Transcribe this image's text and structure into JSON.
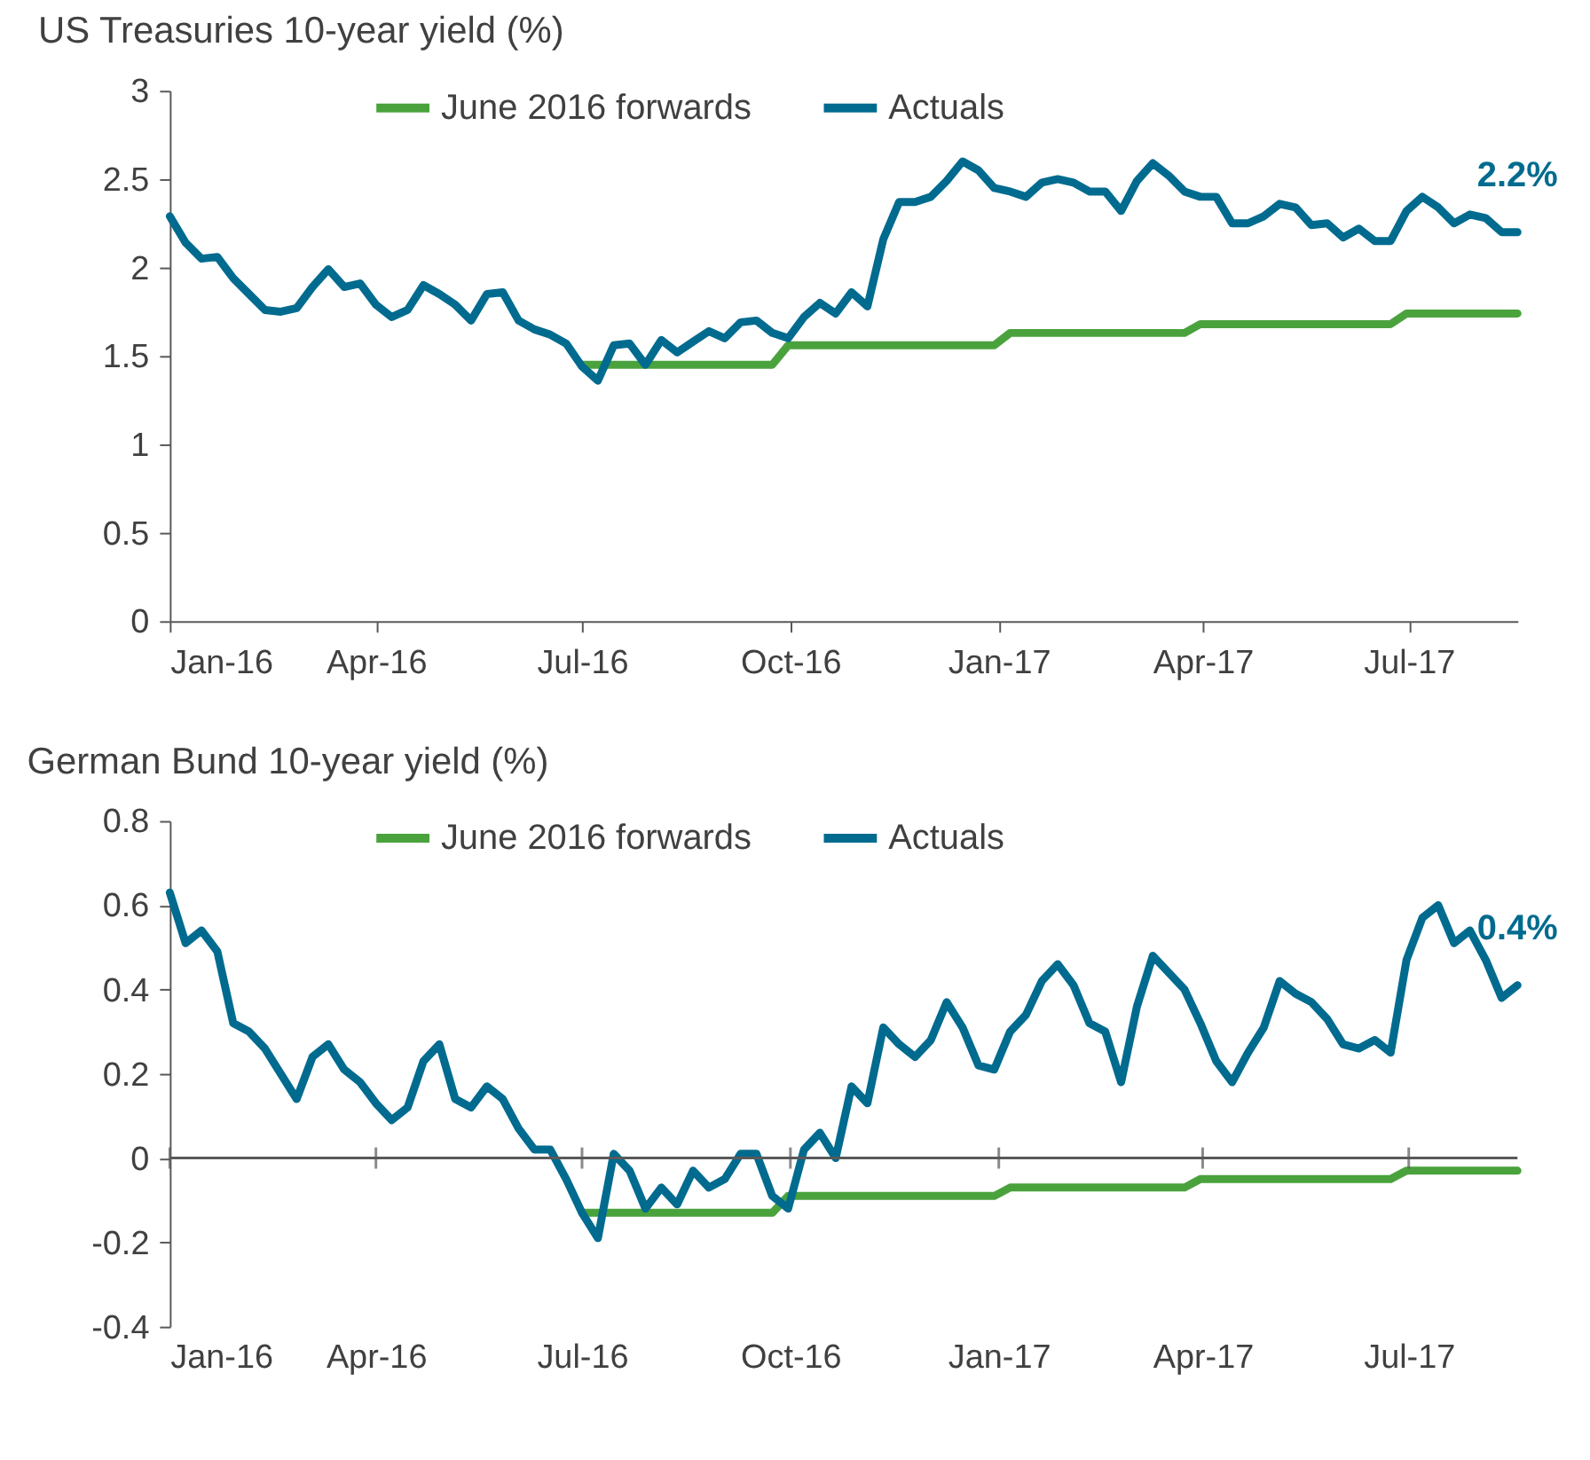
{
  "chart_data": [
    {
      "type": "line",
      "title": "US Treasuries 10-year yield (%)",
      "x": [
        "2016-01-01",
        "2016-01-08",
        "2016-01-15",
        "2016-01-22",
        "2016-01-29",
        "2016-02-05",
        "2016-02-12",
        "2016-02-19",
        "2016-02-26",
        "2016-03-04",
        "2016-03-11",
        "2016-03-18",
        "2016-03-25",
        "2016-04-01",
        "2016-04-08",
        "2016-04-15",
        "2016-04-22",
        "2016-04-29",
        "2016-05-06",
        "2016-05-13",
        "2016-05-20",
        "2016-05-27",
        "2016-06-03",
        "2016-06-10",
        "2016-06-17",
        "2016-06-24",
        "2016-07-01",
        "2016-07-08",
        "2016-07-15",
        "2016-07-22",
        "2016-07-29",
        "2016-08-05",
        "2016-08-12",
        "2016-08-19",
        "2016-08-26",
        "2016-09-02",
        "2016-09-09",
        "2016-09-16",
        "2016-09-23",
        "2016-09-30",
        "2016-10-07",
        "2016-10-14",
        "2016-10-21",
        "2016-10-28",
        "2016-11-04",
        "2016-11-11",
        "2016-11-18",
        "2016-11-25",
        "2016-12-02",
        "2016-12-09",
        "2016-12-16",
        "2016-12-23",
        "2016-12-30",
        "2017-01-06",
        "2017-01-13",
        "2017-01-20",
        "2017-01-27",
        "2017-02-03",
        "2017-02-10",
        "2017-02-17",
        "2017-02-24",
        "2017-03-03",
        "2017-03-10",
        "2017-03-17",
        "2017-03-24",
        "2017-03-31",
        "2017-04-07",
        "2017-04-14",
        "2017-04-21",
        "2017-04-28",
        "2017-05-05",
        "2017-05-12",
        "2017-05-19",
        "2017-05-26",
        "2017-06-02",
        "2017-06-09",
        "2017-06-16",
        "2017-06-23",
        "2017-06-30",
        "2017-07-07",
        "2017-07-14",
        "2017-07-21",
        "2017-07-28",
        "2017-08-04",
        "2017-08-11",
        "2017-08-18"
      ],
      "series": [
        {
          "name": "June 2016 forwards",
          "color": "#4aa23d",
          "x": [
            "2016-07-01",
            "2016-09-23",
            "2016-09-30",
            "2016-12-30",
            "2017-01-06",
            "2017-03-24",
            "2017-03-31",
            "2017-06-23",
            "2017-06-30",
            "2017-08-18"
          ],
          "values": [
            1.45,
            1.45,
            1.56,
            1.56,
            1.63,
            1.63,
            1.68,
            1.68,
            1.74,
            1.74
          ]
        },
        {
          "name": "Actuals",
          "color": "#006b8f",
          "values": [
            2.29,
            2.14,
            2.05,
            2.06,
            1.94,
            1.85,
            1.76,
            1.75,
            1.77,
            1.89,
            1.99,
            1.89,
            1.91,
            1.79,
            1.72,
            1.76,
            1.9,
            1.85,
            1.79,
            1.7,
            1.85,
            1.86,
            1.7,
            1.65,
            1.62,
            1.57,
            1.44,
            1.36,
            1.56,
            1.57,
            1.45,
            1.59,
            1.52,
            1.58,
            1.64,
            1.6,
            1.69,
            1.7,
            1.63,
            1.6,
            1.72,
            1.8,
            1.74,
            1.86,
            1.78,
            2.16,
            2.37,
            2.37,
            2.4,
            2.49,
            2.6,
            2.55,
            2.45,
            2.43,
            2.4,
            2.48,
            2.5,
            2.48,
            2.43,
            2.43,
            2.32,
            2.49,
            2.59,
            2.52,
            2.43,
            2.4,
            2.4,
            2.25,
            2.25,
            2.29,
            2.36,
            2.34,
            2.24,
            2.25,
            2.17,
            2.22,
            2.15,
            2.15,
            2.32,
            2.4,
            2.34,
            2.25,
            2.3,
            2.28,
            2.2,
            2.2
          ]
        }
      ],
      "xlim": [
        "2016-01-01",
        "2017-08-18"
      ],
      "xticks": [
        {
          "value": "2016-01-01",
          "label": "Jan-16"
        },
        {
          "value": "2016-04-01",
          "label": "Apr-16"
        },
        {
          "value": "2016-07-01",
          "label": "Jul-16"
        },
        {
          "value": "2016-10-01",
          "label": "Oct-16"
        },
        {
          "value": "2017-01-01",
          "label": "Jan-17"
        },
        {
          "value": "2017-04-01",
          "label": "Apr-17"
        },
        {
          "value": "2017-07-01",
          "label": "Jul-17"
        }
      ],
      "ylim": [
        0,
        3
      ],
      "yticks": [
        0,
        0.5,
        1,
        1.5,
        2,
        2.5,
        3
      ],
      "annotations": [
        {
          "text": "2.2%",
          "x": "2017-08-18",
          "y": 2.2
        }
      ],
      "legend": "top",
      "grid": false,
      "line_style": "solid",
      "marker": "none"
    },
    {
      "type": "line",
      "title": "German Bund 10-year yield (%)",
      "x": [
        "2016-01-01",
        "2016-01-08",
        "2016-01-15",
        "2016-01-22",
        "2016-01-29",
        "2016-02-05",
        "2016-02-12",
        "2016-02-19",
        "2016-02-26",
        "2016-03-04",
        "2016-03-11",
        "2016-03-18",
        "2016-03-25",
        "2016-04-01",
        "2016-04-08",
        "2016-04-15",
        "2016-04-22",
        "2016-04-29",
        "2016-05-06",
        "2016-05-13",
        "2016-05-20",
        "2016-05-27",
        "2016-06-03",
        "2016-06-10",
        "2016-06-17",
        "2016-06-24",
        "2016-07-01",
        "2016-07-08",
        "2016-07-15",
        "2016-07-22",
        "2016-07-29",
        "2016-08-05",
        "2016-08-12",
        "2016-08-19",
        "2016-08-26",
        "2016-09-02",
        "2016-09-09",
        "2016-09-16",
        "2016-09-23",
        "2016-09-30",
        "2016-10-07",
        "2016-10-14",
        "2016-10-21",
        "2016-10-28",
        "2016-11-04",
        "2016-11-11",
        "2016-11-18",
        "2016-11-25",
        "2016-12-02",
        "2016-12-09",
        "2016-12-16",
        "2016-12-23",
        "2016-12-30",
        "2017-01-06",
        "2017-01-13",
        "2017-01-20",
        "2017-01-27",
        "2017-02-03",
        "2017-02-10",
        "2017-02-17",
        "2017-02-24",
        "2017-03-03",
        "2017-03-10",
        "2017-03-17",
        "2017-03-24",
        "2017-03-31",
        "2017-04-07",
        "2017-04-14",
        "2017-04-21",
        "2017-04-28",
        "2017-05-05",
        "2017-05-12",
        "2017-05-19",
        "2017-05-26",
        "2017-06-02",
        "2017-06-09",
        "2017-06-16",
        "2017-06-23",
        "2017-06-30",
        "2017-07-07",
        "2017-07-14",
        "2017-07-21",
        "2017-07-28",
        "2017-08-04",
        "2017-08-11",
        "2017-08-18"
      ],
      "series": [
        {
          "name": "June 2016 forwards",
          "color": "#4aa23d",
          "x": [
            "2016-07-01",
            "2016-09-23",
            "2016-09-30",
            "2016-12-30",
            "2017-01-06",
            "2017-03-24",
            "2017-03-31",
            "2017-06-23",
            "2017-06-30",
            "2017-08-18"
          ],
          "values": [
            -0.13,
            -0.13,
            -0.09,
            -0.09,
            -0.07,
            -0.07,
            -0.05,
            -0.05,
            -0.03,
            -0.03
          ]
        },
        {
          "name": "Actuals",
          "color": "#006b8f",
          "values": [
            0.63,
            0.51,
            0.54,
            0.49,
            0.32,
            0.3,
            0.26,
            0.2,
            0.14,
            0.24,
            0.27,
            0.21,
            0.18,
            0.13,
            0.09,
            0.12,
            0.23,
            0.27,
            0.14,
            0.12,
            0.17,
            0.14,
            0.07,
            0.02,
            0.02,
            -0.05,
            -0.13,
            -0.19,
            0.01,
            -0.03,
            -0.12,
            -0.07,
            -0.11,
            -0.03,
            -0.07,
            -0.05,
            0.01,
            0.01,
            -0.09,
            -0.12,
            0.02,
            0.06,
            0.0,
            0.17,
            0.13,
            0.31,
            0.27,
            0.24,
            0.28,
            0.37,
            0.31,
            0.22,
            0.21,
            0.3,
            0.34,
            0.42,
            0.46,
            0.41,
            0.32,
            0.3,
            0.18,
            0.36,
            0.48,
            0.44,
            0.4,
            0.32,
            0.23,
            0.18,
            0.25,
            0.31,
            0.42,
            0.39,
            0.37,
            0.33,
            0.27,
            0.26,
            0.28,
            0.25,
            0.47,
            0.57,
            0.6,
            0.51,
            0.54,
            0.47,
            0.38,
            0.41
          ]
        }
      ],
      "xlim": [
        "2016-01-01",
        "2017-08-18"
      ],
      "xticks": [
        {
          "value": "2016-01-01",
          "label": "Jan-16"
        },
        {
          "value": "2016-04-01",
          "label": "Apr-16"
        },
        {
          "value": "2016-07-01",
          "label": "Jul-16"
        },
        {
          "value": "2016-10-01",
          "label": "Oct-16"
        },
        {
          "value": "2017-01-01",
          "label": "Jan-17"
        },
        {
          "value": "2017-04-01",
          "label": "Apr-17"
        },
        {
          "value": "2017-07-01",
          "label": "Jul-17"
        }
      ],
      "ylim": [
        -0.4,
        0.8
      ],
      "yticks": [
        -0.4,
        -0.2,
        0,
        0.2,
        0.4,
        0.6,
        0.8
      ],
      "ref_lines": [
        {
          "axis": "y",
          "value": 0
        }
      ],
      "annotations": [
        {
          "text": "0.4%",
          "x": "2017-08-18",
          "y": 0.41
        }
      ],
      "legend": "top",
      "grid": false,
      "line_style": "solid",
      "marker": "none"
    }
  ]
}
